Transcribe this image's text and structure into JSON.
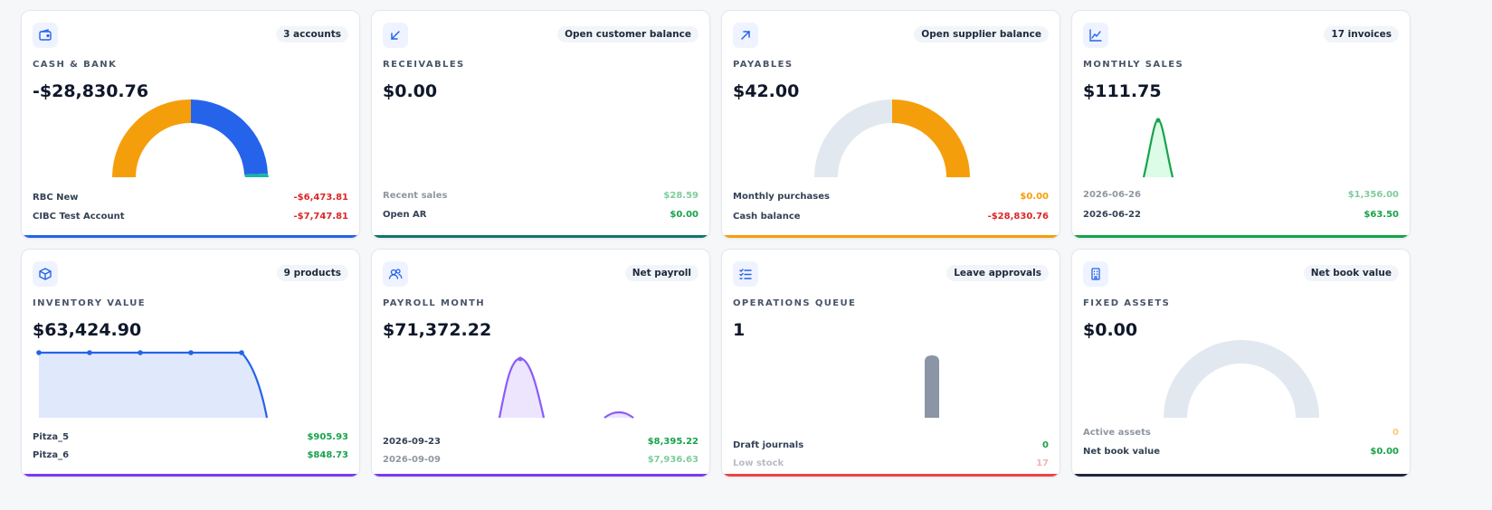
{
  "cards": [
    {
      "badge": "3 accounts",
      "label": "CASH & BANK",
      "value": "-$28,830.76",
      "rows": [
        {
          "name": "RBC New",
          "amount": "-$6,473.81"
        },
        {
          "name": "CIBC Test Account",
          "amount": "-$7,747.81"
        }
      ]
    },
    {
      "badge": "Open customer balance",
      "label": "RECEIVABLES",
      "value": "$0.00",
      "rows": [
        {
          "name": "Recent sales",
          "amount": "$28.59"
        },
        {
          "name": "Open AR",
          "amount": "$0.00"
        }
      ]
    },
    {
      "badge": "Open supplier balance",
      "label": "PAYABLES",
      "value": "$42.00",
      "rows": [
        {
          "name": "Monthly purchases",
          "amount": "$0.00"
        },
        {
          "name": "Cash balance",
          "amount": "-$28,830.76"
        }
      ]
    },
    {
      "badge": "17 invoices",
      "label": "MONTHLY SALES",
      "value": "$111.75",
      "rows": [
        {
          "name": "2026-06-26",
          "amount": "$1,356.00"
        },
        {
          "name": "2026-06-22",
          "amount": "$63.50"
        }
      ]
    },
    {
      "badge": "9 products",
      "label": "INVENTORY VALUE",
      "value": "$63,424.90",
      "rows": [
        {
          "name": "Pitza_5",
          "amount": "$905.93"
        },
        {
          "name": "Pitza_6",
          "amount": "$848.73"
        }
      ]
    },
    {
      "badge": "Net payroll",
      "label": "PAYROLL MONTH",
      "value": "$71,372.22",
      "rows": [
        {
          "name": "2026-09-23",
          "amount": "$8,395.22"
        },
        {
          "name": "2026-09-09",
          "amount": "$7,936.63"
        }
      ]
    },
    {
      "badge": "Leave approvals",
      "label": "OPERATIONS QUEUE",
      "value": "1",
      "rows": [
        {
          "name": "Draft journals",
          "amount": "0"
        },
        {
          "name": "Low stock",
          "amount": "17"
        }
      ]
    },
    {
      "badge": "Net book value",
      "label": "FIXED ASSETS",
      "value": "$0.00",
      "rows": [
        {
          "name": "Active assets",
          "amount": "0"
        },
        {
          "name": "Net book value",
          "amount": "$0.00"
        }
      ]
    }
  ],
  "icons": [
    "wallet-icon",
    "arrow-down-left-icon",
    "arrow-up-right-icon",
    "trend-chart-icon",
    "box-icon",
    "users-icon",
    "checklist-icon",
    "building-icon"
  ],
  "colors": {
    "blue": "#2563eb",
    "teal": "#0f766e",
    "amber": "#f59e0b",
    "green": "#16a34a",
    "purple": "#7c3aed",
    "red": "#ef4444",
    "navy": "#1e293b",
    "gauge_track": "#e2e8f0",
    "slate_bar": "#8b95a5"
  },
  "gauges": {
    "cash_split": [
      0.52,
      0.47,
      0.01
    ],
    "payables_fill": 0.5,
    "fixed_assets_fill": 0
  }
}
